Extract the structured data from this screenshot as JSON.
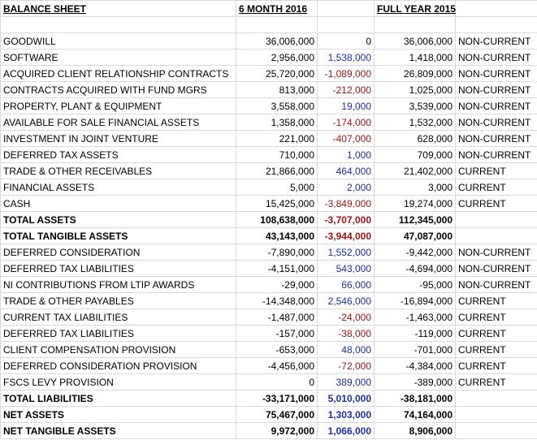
{
  "header": {
    "title": "BALANCE SHEET",
    "period_current": "6 MONTH 2016",
    "period_prior": "FULL YEAR 2015"
  },
  "table": {
    "rows": [
      {
        "label": "GOODWILL",
        "current": "36,006,000",
        "change": "0",
        "prior": "36,006,000",
        "class": "NON-CURRENT"
      },
      {
        "label": "SOFTWARE",
        "current": "2,956,000",
        "change": "1,538,000",
        "prior": "1,418,000",
        "class": "NON-CURRENT"
      },
      {
        "label": "ACQUIRED CLIENT RELATIONSHIP CONTRACTS",
        "current": "25,720,000",
        "change": "-1,089,000",
        "prior": "26,809,000",
        "class": "NON-CURRENT"
      },
      {
        "label": "CONTRACTS ACQUIRED WITH FUND MGRS",
        "current": "813,000",
        "change": "-212,000",
        "prior": "1,025,000",
        "class": "NON-CURRENT"
      },
      {
        "label": "PROPERTY, PLANT & EQUIPMENT",
        "current": "3,558,000",
        "change": "19,000",
        "prior": "3,539,000",
        "class": "NON-CURRENT"
      },
      {
        "label": "AVAILABLE FOR SALE FINANCIAL ASSETS",
        "current": "1,358,000",
        "change": "-174,000",
        "prior": "1,532,000",
        "class": "NON-CURRENT"
      },
      {
        "label": "INVESTMENT IN JOINT VENTURE",
        "current": "221,000",
        "change": "-407,000",
        "prior": "628,000",
        "class": "NON-CURRENT"
      },
      {
        "label": "DEFERRED TAX ASSETS",
        "current": "710,000",
        "change": "1,000",
        "prior": "709,000",
        "class": "NON-CURRENT"
      },
      {
        "label": "TRADE & OTHER RECEIVABLES",
        "current": "21,866,000",
        "change": "464,000",
        "prior": "21,402,000",
        "class": "CURRENT"
      },
      {
        "label": "FINANCIAL ASSETS",
        "current": "5,000",
        "change": "2,000",
        "prior": "3,000",
        "class": "CURRENT"
      },
      {
        "label": "CASH",
        "current": "15,425,000",
        "change": "-3,849,000",
        "prior": "19,274,000",
        "class": "CURRENT"
      },
      {
        "label": "TOTAL ASSETS",
        "current": "108,638,000",
        "change": "-3,707,000",
        "prior": "112,345,000",
        "bold": true
      },
      {
        "label": "TOTAL TANGIBLE ASSETS",
        "current": "43,143,000",
        "change": "-3,944,000",
        "prior": "47,087,000",
        "bold": true
      },
      {
        "label": "DEFERRED CONSIDERATION",
        "current": "-7,890,000",
        "change": "1,552,000",
        "prior": "-9,442,000",
        "class": "NON-CURRENT"
      },
      {
        "label": "DEFERRED TAX LIABILITIES",
        "current": "-4,151,000",
        "change": "543,000",
        "prior": "-4,694,000",
        "class": "NON-CURRENT"
      },
      {
        "label": "NI CONTRIBUTIONS FROM LTIP AWARDS",
        "current": "-29,000",
        "change": "66,000",
        "prior": "-95,000",
        "class": "NON-CURRENT"
      },
      {
        "label": "TRADE & OTHER PAYABLES",
        "current": "-14,348,000",
        "change": "2,546,000",
        "prior": "-16,894,000",
        "class": "CURRENT"
      },
      {
        "label": "CURRENT TAX LIABILITIES",
        "current": "-1,487,000",
        "change": "-24,000",
        "prior": "-1,463,000",
        "class": "CURRENT"
      },
      {
        "label": "DEFERRED TAX LIABILITIES",
        "current": "-157,000",
        "change": "-38,000",
        "prior": "-119,000",
        "class": "CURRENT"
      },
      {
        "label": "CLIENT COMPENSATION PROVISION",
        "current": "-653,000",
        "change": "48,000",
        "prior": "-701,000",
        "class": "CURRENT"
      },
      {
        "label": "DEFERRED CONSIDERATION PROVISION",
        "current": "-4,456,000",
        "change": "-72,000",
        "prior": "-4,384,000",
        "class": "CURRENT"
      },
      {
        "label": "FSCS LEVY PROVISION",
        "current": "0",
        "change": "389,000",
        "prior": "-389,000",
        "class": "CURRENT"
      },
      {
        "label": "TOTAL LIABILITIES",
        "current": "-33,171,000",
        "change": "5,010,000",
        "prior": "-38,181,000",
        "bold": true
      },
      {
        "label": "NET ASSETS",
        "current": "75,467,000",
        "change": "1,303,000",
        "prior": "74,164,000",
        "bold": true
      },
      {
        "label": "NET TANGIBLE ASSETS",
        "current": "9,972,000",
        "change": "1,066,000",
        "prior": "8,906,000",
        "bold": true
      }
    ]
  }
}
